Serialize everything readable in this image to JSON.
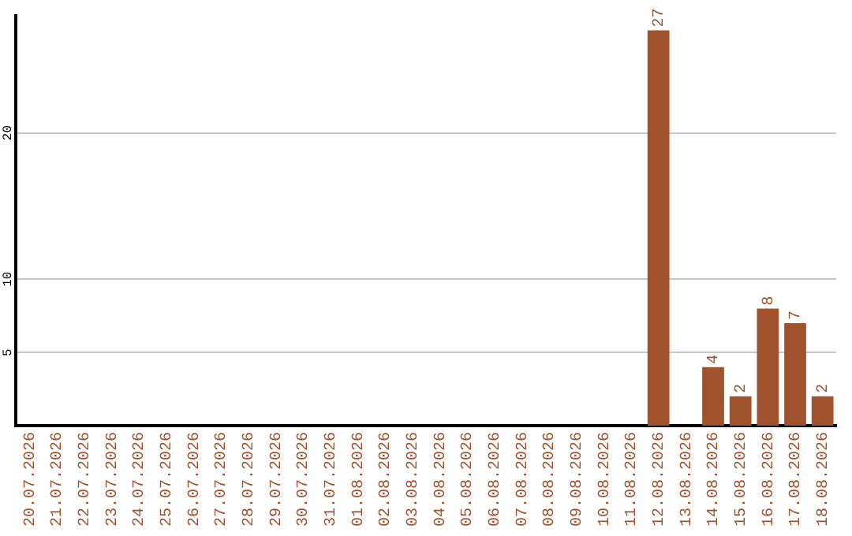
{
  "chart_data": {
    "type": "bar",
    "categories": [
      "20.07.2026",
      "21.07.2026",
      "22.07.2026",
      "23.07.2026",
      "24.07.2026",
      "25.07.2026",
      "26.07.2026",
      "27.07.2026",
      "28.07.2026",
      "29.07.2026",
      "30.07.2026",
      "31.07.2026",
      "01.08.2026",
      "02.08.2026",
      "03.08.2026",
      "04.08.2026",
      "05.08.2026",
      "06.08.2026",
      "07.08.2026",
      "08.08.2026",
      "09.08.2026",
      "10.08.2026",
      "11.08.2026",
      "12.08.2026",
      "13.08.2026",
      "14.08.2026",
      "15.08.2026",
      "16.08.2026",
      "17.08.2026",
      "18.08.2026"
    ],
    "values": [
      0,
      0,
      0,
      0,
      0,
      0,
      0,
      0,
      0,
      0,
      0,
      0,
      0,
      0,
      0,
      0,
      0,
      0,
      0,
      0,
      0,
      0,
      0,
      27,
      0,
      4,
      2,
      8,
      7,
      2
    ],
    "value_labels": [
      null,
      null,
      null,
      null,
      null,
      null,
      null,
      null,
      null,
      null,
      null,
      null,
      null,
      null,
      null,
      null,
      null,
      null,
      null,
      null,
      null,
      null,
      null,
      "27",
      null,
      "4",
      "2",
      "8",
      "7",
      "2"
    ],
    "color": "#a0522d",
    "ylim": [
      0,
      28
    ],
    "yticks": [
      5,
      10,
      20
    ],
    "grid": "y",
    "legend": false
  }
}
